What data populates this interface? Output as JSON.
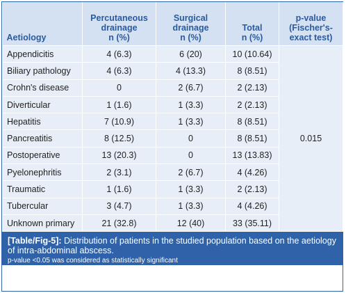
{
  "table": {
    "headers": [
      {
        "lines": [
          "Aetiology"
        ]
      },
      {
        "lines": [
          "Percutaneous",
          "drainage",
          "n (%)"
        ]
      },
      {
        "lines": [
          "Surgical",
          "drainage",
          "n (%)"
        ]
      },
      {
        "lines": [
          "Total",
          "n (%)"
        ]
      },
      {
        "lines": [
          "p-value",
          "(Fischer's-",
          "exact test)"
        ]
      }
    ],
    "rows": [
      {
        "aetiology": "Appendicitis",
        "percutaneous": "4 (6.3)",
        "surgical": "6 (20)",
        "total": "10 (10.64)"
      },
      {
        "aetiology": "Biliary pathology",
        "percutaneous": "4 (6.3)",
        "surgical": "4 (13.3)",
        "total": "8 (8.51)"
      },
      {
        "aetiology": "Crohn's disease",
        "percutaneous": "0",
        "surgical": "2 (6.7)",
        "total": "2 (2.13)"
      },
      {
        "aetiology": "Diverticular",
        "percutaneous": "1 (1.6)",
        "surgical": "1 (3.3)",
        "total": "2 (2.13)"
      },
      {
        "aetiology": "Hepatitis",
        "percutaneous": "7 (10.9)",
        "surgical": "1 (3.3)",
        "total": "8 (8.51)"
      },
      {
        "aetiology": "Pancreatitis",
        "percutaneous": "8 (12.5)",
        "surgical": "0",
        "total": "8 (8.51)"
      },
      {
        "aetiology": "Postoperative",
        "percutaneous": "13 (20.3)",
        "surgical": "0",
        "total": "13 (13.83)"
      },
      {
        "aetiology": "Pyelonephritis",
        "percutaneous": "2 (3.1)",
        "surgical": "2 (6.7)",
        "total": "4 (4.26)"
      },
      {
        "aetiology": "Traumatic",
        "percutaneous": "1 (1.6)",
        "surgical": "1 (3.3)",
        "total": "2 (2.13)"
      },
      {
        "aetiology": "Tubercular",
        "percutaneous": "3 (4.7)",
        "surgical": "1 (3.3)",
        "total": "4 (4.26)"
      },
      {
        "aetiology": "Unknown primary",
        "percutaneous": "21 (32.8)",
        "surgical": "12 (40)",
        "total": "33 (35.11)"
      }
    ],
    "p_value": "0.015"
  },
  "caption": {
    "tag": "[Table/Fig-5]:",
    "text": " Distribution of patients in the studied population based on the aetiology of intra-abdominal abscess.",
    "note": "p-value <0.05 was considered as statistically significant"
  },
  "colors": {
    "header_bg": "#d3e1f2",
    "header_text": "#2a5aa0",
    "row_bg": "#e8eef7",
    "caption_bg": "#2f62a8"
  }
}
